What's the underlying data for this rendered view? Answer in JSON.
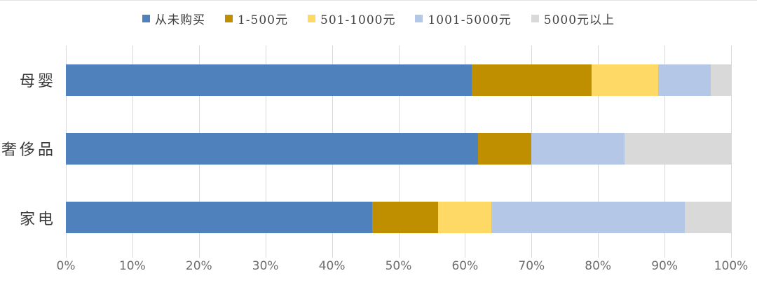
{
  "chart_data": {
    "type": "bar",
    "orientation": "horizontal",
    "stacked": true,
    "title": "",
    "categories": [
      "母婴",
      "奢侈品",
      "家电"
    ],
    "series": [
      {
        "name": "从未购买",
        "color": "#4F81BD",
        "values": [
          61,
          62,
          46
        ]
      },
      {
        "name": "1-500元",
        "color": "#BF8F00",
        "values": [
          18,
          8,
          10
        ]
      },
      {
        "name": "501-1000元",
        "color": "#FFD966",
        "values": [
          10,
          0,
          8
        ]
      },
      {
        "name": "1001-5000元",
        "color": "#B4C7E7",
        "values": [
          8,
          14,
          29
        ]
      },
      {
        "name": "5000元以上",
        "color": "#D9D9D9",
        "values": [
          3,
          16,
          7
        ]
      }
    ],
    "x_axis": {
      "min": 0,
      "max": 100,
      "step": 10,
      "unit": "%",
      "tick_labels": [
        "0%",
        "10%",
        "20%",
        "30%",
        "40%",
        "50%",
        "60%",
        "70%",
        "80%",
        "90%",
        "100%"
      ]
    },
    "legend_position": "top",
    "gridlines": "vertical"
  },
  "styles": {
    "gridline_color": "#d9d9d9",
    "axis_text_color": "#6e6e6e",
    "category_text_color": "#3c3c3c",
    "legend_text_color": "#404040",
    "background": "#ffffff"
  }
}
